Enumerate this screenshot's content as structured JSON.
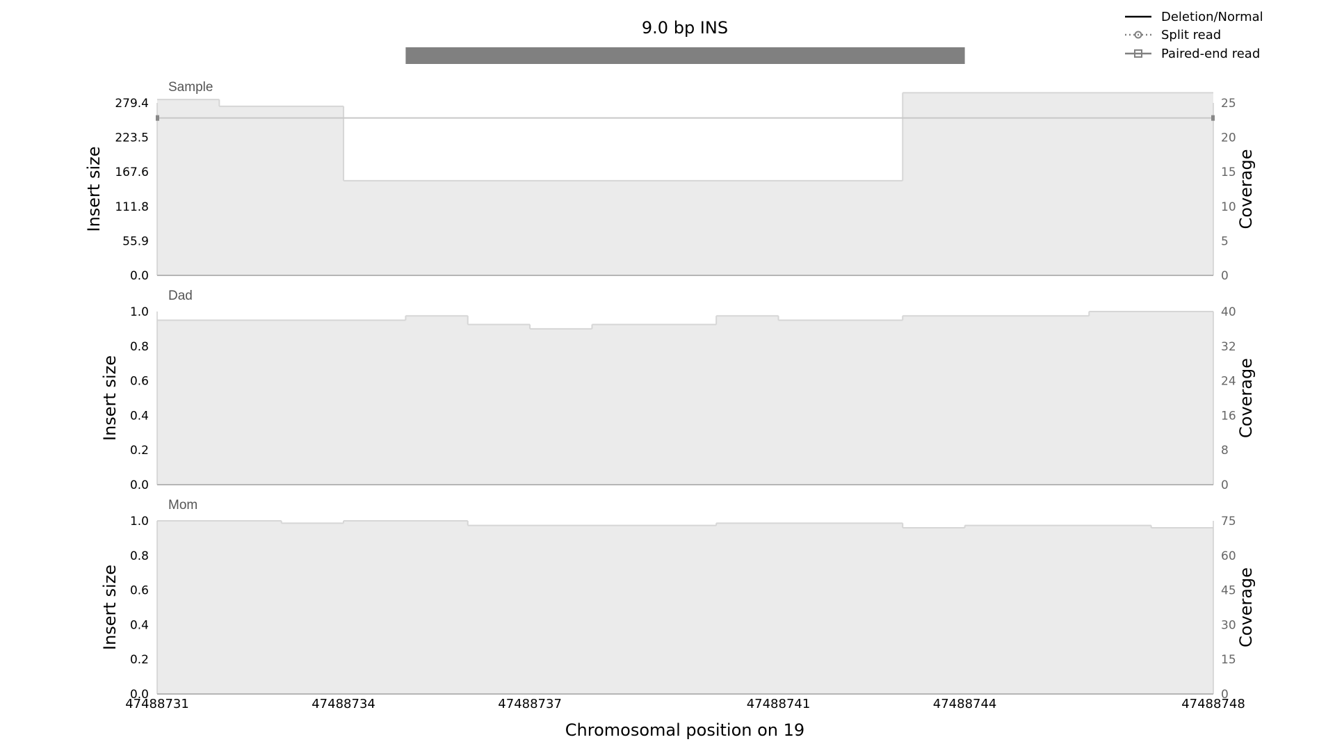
{
  "chart_data": {
    "type": "area",
    "title": "9.0 bp INS",
    "xlabel": "Chromosomal position on 19",
    "xlim": [
      47488731,
      47488748
    ],
    "x_ticks": [
      "47488731",
      "47488734",
      "47488737",
      "47488741",
      "47488744",
      "47488748"
    ],
    "variant": {
      "label": "9.0 bp INS",
      "start": 47488735,
      "end": 47488744,
      "color": "#808080"
    },
    "legend": {
      "position": "top-right",
      "items": [
        {
          "label": "Deletion/Normal",
          "style": "solid",
          "color": "#000000"
        },
        {
          "label": "Split read",
          "style": "dotted-circle",
          "color": "#808080"
        },
        {
          "label": "Paired-end read",
          "style": "solid-square",
          "color": "#808080"
        }
      ]
    },
    "panels": [
      {
        "name": "Sample",
        "ylabel": "Insert size",
        "y2label": "Coverage",
        "ylim": [
          0,
          279.4
        ],
        "y_ticks": [
          "0.0",
          "55.9",
          "111.8",
          "167.6",
          "223.5",
          "279.4"
        ],
        "y2lim": [
          0,
          25.5
        ],
        "y2_ticks": [
          "0",
          "5",
          "10",
          "15",
          "20",
          "25"
        ],
        "coverage_steps": [
          {
            "x_start": 47488731,
            "x_end": 47488732,
            "coverage": 26
          },
          {
            "x_start": 47488732,
            "x_end": 47488734,
            "coverage": 25
          },
          {
            "x_start": 47488734,
            "x_end": 47488743,
            "coverage": 14
          },
          {
            "x_start": 47488743,
            "x_end": 47488748,
            "coverage": 27
          }
        ],
        "paired_end_reads": [
          {
            "x_start": 47488731,
            "x_end": 47488748,
            "insert_size": 255
          }
        ]
      },
      {
        "name": "Dad",
        "ylabel": "Insert size",
        "y2label": "Coverage",
        "ylim": [
          0,
          1.0
        ],
        "y_ticks": [
          "0.0",
          "0.2",
          "0.4",
          "0.6",
          "0.8",
          "1.0"
        ],
        "y2lim": [
          0,
          40
        ],
        "y2_ticks": [
          "0",
          "8",
          "16",
          "24",
          "32",
          "40"
        ],
        "coverage_steps": [
          {
            "x_start": 47488731,
            "x_end": 47488735,
            "coverage": 38
          },
          {
            "x_start": 47488735,
            "x_end": 47488736,
            "coverage": 39
          },
          {
            "x_start": 47488736,
            "x_end": 47488737,
            "coverage": 37
          },
          {
            "x_start": 47488737,
            "x_end": 47488738,
            "coverage": 36
          },
          {
            "x_start": 47488738,
            "x_end": 47488740,
            "coverage": 37
          },
          {
            "x_start": 47488740,
            "x_end": 47488741,
            "coverage": 39
          },
          {
            "x_start": 47488741,
            "x_end": 47488743,
            "coverage": 38
          },
          {
            "x_start": 47488743,
            "x_end": 47488746,
            "coverage": 39
          },
          {
            "x_start": 47488746,
            "x_end": 47488748,
            "coverage": 40
          }
        ],
        "paired_end_reads": []
      },
      {
        "name": "Mom",
        "ylabel": "Insert size",
        "y2label": "Coverage",
        "ylim": [
          0,
          1.0
        ],
        "y_ticks": [
          "0.0",
          "0.2",
          "0.4",
          "0.6",
          "0.8",
          "1.0"
        ],
        "y2lim": [
          0,
          75
        ],
        "y2_ticks": [
          "0",
          "15",
          "30",
          "45",
          "60",
          "75"
        ],
        "coverage_steps": [
          {
            "x_start": 47488731,
            "x_end": 47488733,
            "coverage": 75
          },
          {
            "x_start": 47488733,
            "x_end": 47488734,
            "coverage": 74
          },
          {
            "x_start": 47488734,
            "x_end": 47488736,
            "coverage": 75
          },
          {
            "x_start": 47488736,
            "x_end": 47488740,
            "coverage": 73
          },
          {
            "x_start": 47488740,
            "x_end": 47488743,
            "coverage": 74
          },
          {
            "x_start": 47488743,
            "x_end": 47488744,
            "coverage": 72
          },
          {
            "x_start": 47488744,
            "x_end": 47488747,
            "coverage": 73
          },
          {
            "x_start": 47488747,
            "x_end": 47488748,
            "coverage": 72
          }
        ],
        "paired_end_reads": []
      }
    ]
  }
}
